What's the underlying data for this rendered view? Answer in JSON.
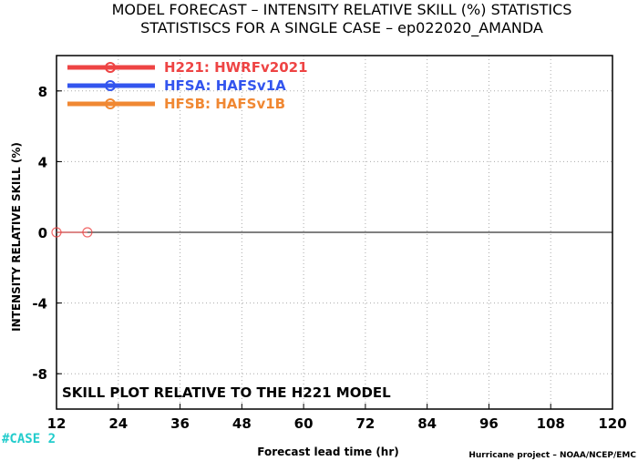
{
  "chart_data": {
    "type": "line",
    "title": "MODEL FORECAST – INTENSITY RELATIVE SKILL (%) STATISTICS",
    "subtitle": "STATISTISCS FOR A SINGLE CASE – ep022020_AMANDA",
    "xlabel": "Forecast lead time (hr)",
    "ylabel": "INTENSITY RELATIVE SKILL (%)",
    "xlim": [
      12,
      120
    ],
    "ylim": [
      -10,
      10
    ],
    "xticks": [
      "12",
      "24",
      "36",
      "48",
      "60",
      "72",
      "84",
      "96",
      "108",
      "120"
    ],
    "yticks": [
      "8",
      "4",
      "0",
      "-4",
      "-8"
    ],
    "grid": true,
    "legend_position": "top-left",
    "annotation": "SKILL PLOT RELATIVE TO THE H221 MODEL",
    "case_label": "#CASE  2",
    "credit": "Hurricane project – NOAA/NCEP/EMC",
    "series": [
      {
        "name": "H221: HWRFv2021",
        "color": "#ee4444",
        "x": [
          12,
          18
        ],
        "y": [
          0,
          0
        ]
      },
      {
        "name": "HFSA: HAFSv1A",
        "color": "#3355ee",
        "x": [],
        "y": []
      },
      {
        "name": "HFSB: HAFSv1B",
        "color": "#f08833",
        "x": [],
        "y": []
      }
    ]
  },
  "colors": {
    "case_label": "#22cccc",
    "axis": "#000000",
    "grid": "#aaaaaa"
  }
}
